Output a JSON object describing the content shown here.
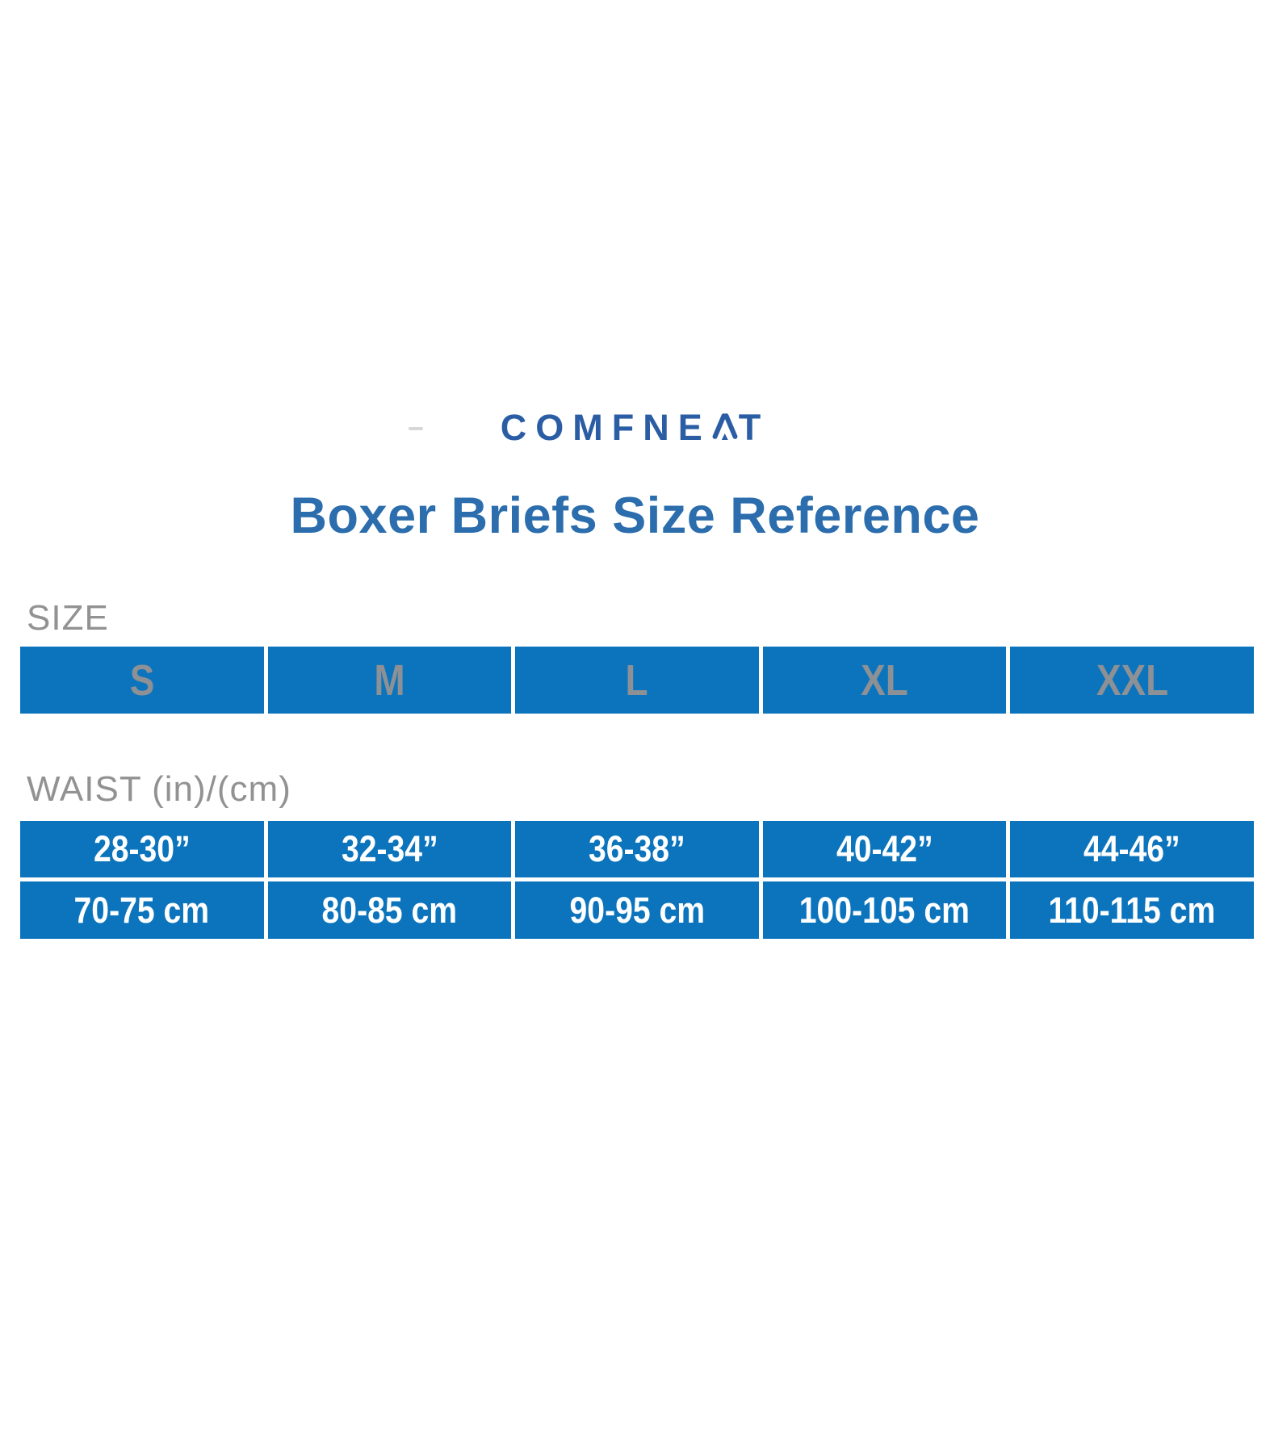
{
  "brand": {
    "logo_full": "COMFNEAT",
    "logo_pre": "COMFNE",
    "logo_a": "A",
    "logo_post": "T"
  },
  "title": "Boxer Briefs Size Reference",
  "labels": {
    "size": "SIZE",
    "waist": "WAIST (in)/(cm)"
  },
  "chart_data": {
    "type": "table",
    "title": "Boxer Briefs Size Reference",
    "columns": [
      "S",
      "M",
      "L",
      "XL",
      "XXL"
    ],
    "rows": [
      {
        "name": "WAIST (in)",
        "values": [
          "28-30”",
          "32-34”",
          "36-38”",
          "40-42”",
          "44-46”"
        ]
      },
      {
        "name": "WAIST (cm)",
        "values": [
          "70-75 cm",
          "80-85 cm",
          "90-95 cm",
          "100-105 cm",
          "110-115 cm"
        ]
      }
    ]
  },
  "colors": {
    "cell_blue": "#0B74BC",
    "title_blue": "#2B6DAD",
    "logo_navy": "#2B5DA5",
    "size_letter_gray": "#8D9095",
    "label_gray": "#929292",
    "value_text_white": "#FFFFFF"
  }
}
